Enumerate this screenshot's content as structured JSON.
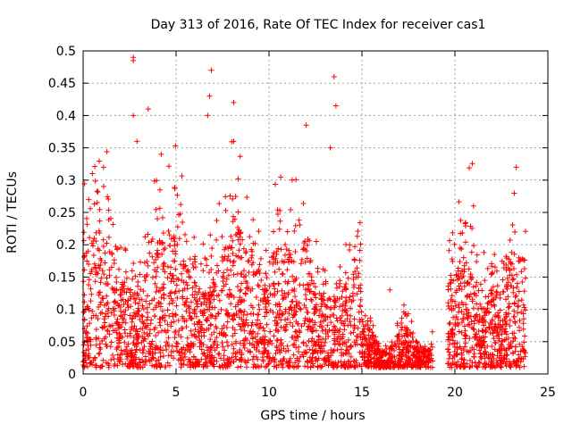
{
  "chart_data": {
    "type": "scatter",
    "title": "Day 313 of 2016, Rate Of TEC Index for receiver cas1",
    "xlabel": "GPS time / hours",
    "ylabel": "ROTI / TECUs",
    "xlim": [
      0,
      25
    ],
    "ylim": [
      0,
      0.5
    ],
    "xticks": [
      "0",
      "5",
      "10",
      "15",
      "20",
      "25"
    ],
    "yticks": [
      "0",
      "0.05",
      "0.1",
      "0.15",
      "0.2",
      "0.25",
      "0.3",
      "0.35",
      "0.4",
      "0.45",
      "0.5"
    ],
    "grid": true,
    "marker": "+",
    "marker_color": "#ff0000",
    "data_gap_hours": [
      18.8,
      19.6
    ],
    "data_range_hours": [
      0,
      23.8
    ],
    "peaks": [
      {
        "x": 2.7,
        "y": 0.49
      },
      {
        "x": 2.7,
        "y": 0.485
      },
      {
        "x": 6.9,
        "y": 0.47
      },
      {
        "x": 13.5,
        "y": 0.46
      },
      {
        "x": 6.8,
        "y": 0.43
      },
      {
        "x": 8.1,
        "y": 0.42
      },
      {
        "x": 13.6,
        "y": 0.415
      },
      {
        "x": 3.5,
        "y": 0.41
      },
      {
        "x": 2.7,
        "y": 0.4
      },
      {
        "x": 6.7,
        "y": 0.4
      },
      {
        "x": 12.0,
        "y": 0.385
      },
      {
        "x": 8.1,
        "y": 0.36
      },
      {
        "x": 2.9,
        "y": 0.36
      },
      {
        "x": 13.3,
        "y": 0.35
      },
      {
        "x": 4.2,
        "y": 0.34
      },
      {
        "x": 23.3,
        "y": 0.32
      },
      {
        "x": 1.1,
        "y": 0.32
      },
      {
        "x": 0.5,
        "y": 0.31
      },
      {
        "x": 21.0,
        "y": 0.26
      },
      {
        "x": 16.5,
        "y": 0.13
      }
    ]
  }
}
